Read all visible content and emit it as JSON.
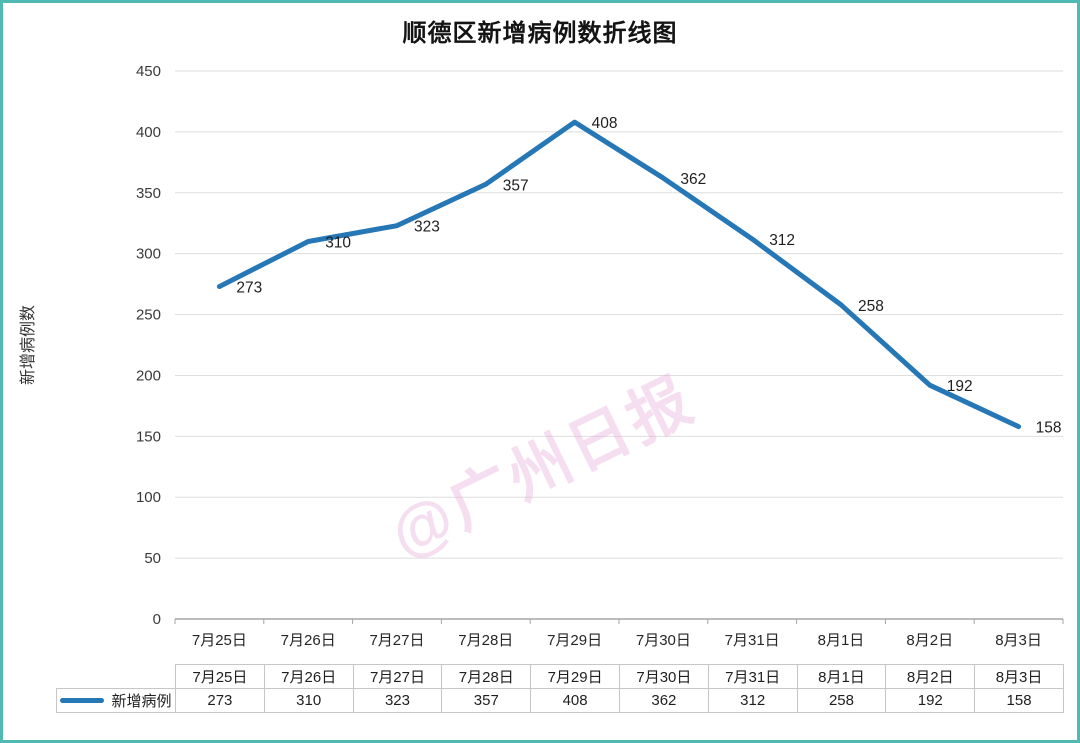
{
  "frame": {
    "border_color": "#4fb9b2",
    "background": "#ffffff"
  },
  "chart_data": {
    "type": "line",
    "title": "顺德区新增病例数折线图",
    "xlabel": "",
    "ylabel": "新增病例数",
    "categories": [
      "7月25日",
      "7月26日",
      "7月27日",
      "7月28日",
      "7月29日",
      "7月30日",
      "7月31日",
      "8月1日",
      "8月2日",
      "8月3日"
    ],
    "series": [
      {
        "name": "新增病例",
        "values": [
          273,
          310,
          323,
          357,
          408,
          362,
          312,
          258,
          192,
          158
        ],
        "color": "#2577b6"
      }
    ],
    "ylim": [
      0,
      450
    ],
    "y_tick_step": 50,
    "y_tick_labels": [
      "0",
      "50",
      "100",
      "150",
      "200",
      "250",
      "300",
      "350",
      "400",
      "450"
    ],
    "grid": true,
    "data_labels": true,
    "legend_position": "bottom-left"
  },
  "table": {
    "legend_label": "新增病例",
    "header_row": [
      "7月25日",
      "7月26日",
      "7月27日",
      "7月28日",
      "7月29日",
      "7月30日",
      "7月31日",
      "8月1日",
      "8月2日",
      "8月3日"
    ],
    "value_row": [
      "273",
      "310",
      "323",
      "357",
      "408",
      "362",
      "312",
      "258",
      "192",
      "158"
    ]
  },
  "watermark": {
    "text": "@广州日报",
    "color": "#e9a9dc"
  },
  "colors": {
    "gridline": "#dedede",
    "axis": "#a6a6a6",
    "tick_text": "#3a3a3a",
    "label_text": "#1f1f1f",
    "table_border": "#c6c6c6"
  }
}
